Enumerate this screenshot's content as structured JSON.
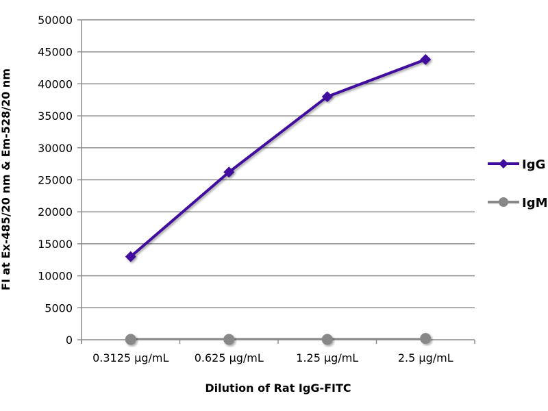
{
  "chart_data": {
    "type": "line",
    "title": "",
    "xlabel": "Dilution of Rat IgG-FITC",
    "ylabel": "FI at Ex-485/20 nm & Em-528/20 nm",
    "categories": [
      "0.3125 µg/mL",
      "0.625 µg/mL",
      "1.25 µg/mL",
      "2.5 µg/mL"
    ],
    "ylim": [
      0,
      50000
    ],
    "yticks": [
      0,
      5000,
      10000,
      15000,
      20000,
      25000,
      30000,
      35000,
      40000,
      45000,
      50000
    ],
    "grid": true,
    "legend_position": "right",
    "series": [
      {
        "name": "IgG",
        "values": [
          13000,
          26200,
          38000,
          43800
        ],
        "color": "#3f0a9e",
        "marker": "diamond"
      },
      {
        "name": "IgM",
        "values": [
          50,
          50,
          50,
          200
        ],
        "color": "#888888",
        "marker": "circle"
      }
    ]
  }
}
